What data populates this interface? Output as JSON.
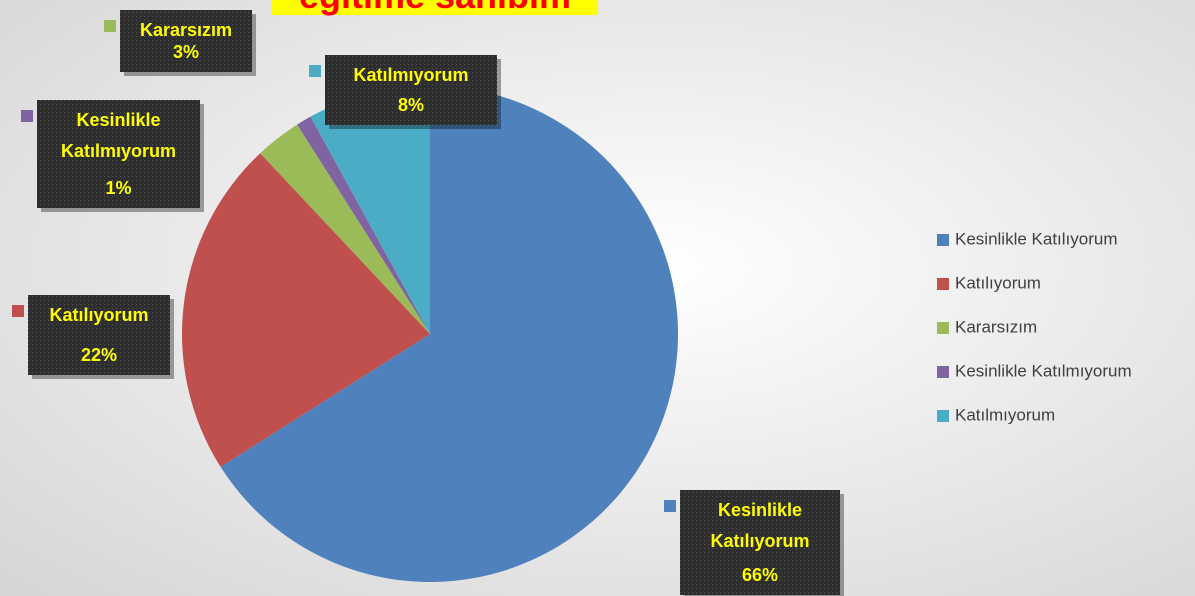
{
  "chart_data": {
    "type": "pie",
    "title": "eğitime sahibim",
    "categories": [
      "Kesinlikle Katılıyorum",
      "Katılıyorum",
      "Kararsızım",
      "Kesinlikle Katılmıyorum",
      "Katılmıyorum"
    ],
    "values": [
      66,
      22,
      3,
      1,
      8
    ],
    "value_labels": [
      "66%",
      "22%",
      "3%",
      "1%",
      "8%"
    ],
    "colors": [
      "#4f81bd",
      "#c0504d",
      "#9bbb59",
      "#8064a2",
      "#4bacc6"
    ],
    "legend": "right"
  }
}
